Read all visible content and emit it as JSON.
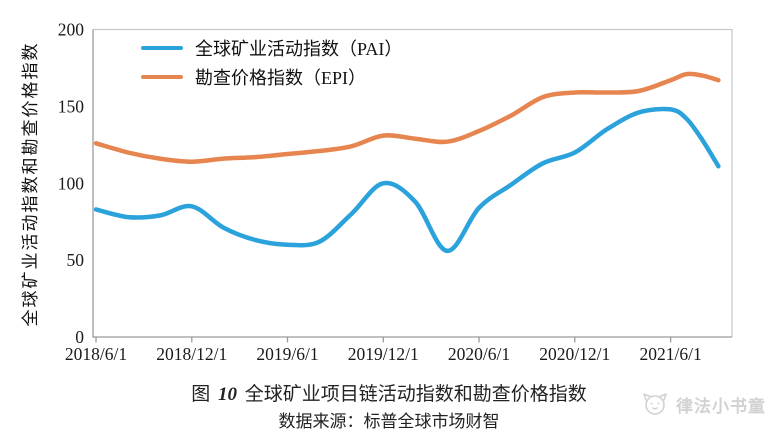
{
  "figure": {
    "y_axis_title": "全球矿业活动指数和勘查价格指数",
    "caption": {
      "prefix": "图",
      "number": "10",
      "title": "全球矿业项目链活动指数和勘查价格指数"
    },
    "source": "数据来源：标普全球市场财智",
    "watermark": {
      "text": "律法小书童",
      "icon": "cat-face-icon"
    }
  },
  "chart_data": {
    "type": "line",
    "title": "",
    "xlabel": "",
    "ylabel": "全球矿业活动指数和勘查价格指数",
    "ylim": [
      0,
      200
    ],
    "y_ticks": [
      0,
      50,
      100,
      150,
      200
    ],
    "x_tick_labels": [
      "2018/6/1",
      "2018/12/1",
      "2019/6/1",
      "2019/12/1",
      "2020/6/1",
      "2020/12/1",
      "2021/6/1"
    ],
    "grid": false,
    "legend_position": "top-left-inside",
    "line_smoothing": true,
    "x": [
      "2018/6",
      "2018/8",
      "2018/10",
      "2018/12",
      "2019/2",
      "2019/4",
      "2019/6",
      "2019/8",
      "2019/10",
      "2019/12",
      "2020/2",
      "2020/4",
      "2020/6",
      "2020/8",
      "2020/10",
      "2020/12",
      "2021/2",
      "2021/4",
      "2021/6",
      "2021/7",
      "2021/8",
      "2021/9"
    ],
    "series": [
      {
        "name": "全球矿业活动指数（PAI）",
        "color": "#2BA2DB",
        "values": [
          83,
          78,
          79,
          85,
          71,
          63,
          60,
          62,
          80,
          100,
          88,
          56,
          84,
          99,
          113,
          120,
          135,
          146,
          148,
          142,
          128,
          111
        ]
      },
      {
        "name": "勘查价格指数（EPI）",
        "color": "#E6854F",
        "values": [
          126,
          120,
          116,
          114,
          116,
          117,
          119,
          121,
          124,
          131,
          129,
          127,
          134,
          144,
          156,
          159,
          159,
          160,
          167,
          171,
          170,
          167
        ]
      }
    ],
    "axis_colors": {
      "axis": "#9b9b9b",
      "border": "#c9c9c9",
      "tick_text": "#1a1a1a"
    }
  }
}
